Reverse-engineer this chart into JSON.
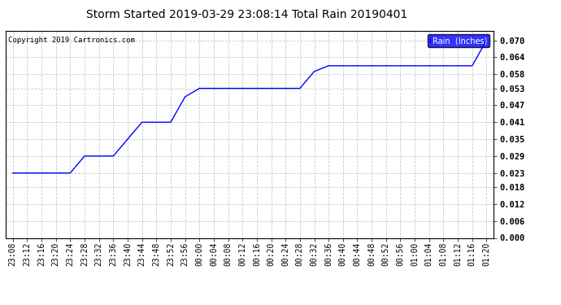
{
  "title": "Storm Started 2019-03-29 23:08:14 Total Rain 20190401",
  "copyright_text": "Copyright 2019 Cartronics.com",
  "legend_label": "Rain  (Inches)",
  "line_color": "#0000ff",
  "legend_bg": "#0000ff",
  "legend_text_color": "#ffffff",
  "background_color": "#ffffff",
  "grid_color": "#bbbbbb",
  "title_color": "#000000",
  "tick_color": "#000000",
  "outer_bg": "#ffffff",
  "border_color": "#000000",
  "ylim": [
    0.0,
    0.0735
  ],
  "ytick_values": [
    0.0,
    0.006,
    0.012,
    0.018,
    0.023,
    0.029,
    0.035,
    0.041,
    0.047,
    0.053,
    0.058,
    0.064,
    0.07
  ],
  "x_data": [
    "23:08",
    "23:12",
    "23:16",
    "23:20",
    "23:24",
    "23:28",
    "23:32",
    "23:36",
    "23:40",
    "23:44",
    "23:48",
    "23:52",
    "23:56",
    "00:00",
    "00:04",
    "00:08",
    "00:12",
    "00:16",
    "00:20",
    "00:24",
    "00:28",
    "00:32",
    "00:36",
    "00:40",
    "00:44",
    "00:48",
    "00:52",
    "00:56",
    "01:00",
    "01:04",
    "01:08",
    "01:12",
    "01:16",
    "01:20"
  ],
  "y_data": [
    0.023,
    0.023,
    0.023,
    0.023,
    0.023,
    0.029,
    0.029,
    0.029,
    0.035,
    0.041,
    0.041,
    0.041,
    0.05,
    0.053,
    0.053,
    0.053,
    0.053,
    0.053,
    0.053,
    0.053,
    0.053,
    0.059,
    0.061,
    0.061,
    0.061,
    0.061,
    0.061,
    0.061,
    0.061,
    0.061,
    0.061,
    0.061,
    0.061,
    0.07
  ],
  "title_fontsize": 10,
  "tick_fontsize": 7,
  "ytick_fontsize": 7.5
}
